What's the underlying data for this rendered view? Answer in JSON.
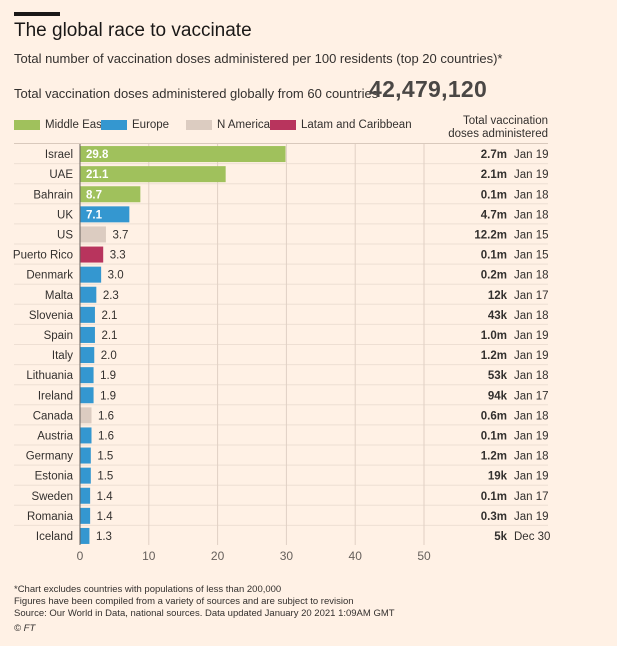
{
  "header": {
    "title": "The global race to vaccinate",
    "subtitle": "Total number of vaccination doses administered per 100 residents (top 20 countries)*",
    "total_label": "Total vaccination doses administered globally from 60 countries",
    "total_value": "42,479,120",
    "doses_column_header": "Total vaccination doses administered"
  },
  "legend": [
    {
      "name": "Middle East",
      "color": "#a0c15c"
    },
    {
      "name": "Europe",
      "color": "#3497d0"
    },
    {
      "name": "N America",
      "color": "#dcccc1"
    },
    {
      "name": "Latam and Caribbean",
      "color": "#b8345d"
    }
  ],
  "chart_data": {
    "type": "bar",
    "orientation": "horizontal",
    "xlim": [
      0,
      50
    ],
    "x_ticks": [
      0,
      10,
      20,
      30,
      40,
      50
    ],
    "grid": true,
    "legend_position": "top",
    "rows": [
      {
        "country": "Israel",
        "value": 29.8,
        "label": "29.8",
        "region": "Middle East",
        "doses": "2.7m",
        "date": "Jan 19"
      },
      {
        "country": "UAE",
        "value": 21.1,
        "label": "21.1",
        "region": "Middle East",
        "doses": "2.1m",
        "date": "Jan 19"
      },
      {
        "country": "Bahrain",
        "value": 8.7,
        "label": "8.7",
        "region": "Middle East",
        "doses": "0.1m",
        "date": "Jan 18"
      },
      {
        "country": "UK",
        "value": 7.1,
        "label": "7.1",
        "region": "Europe",
        "doses": "4.7m",
        "date": "Jan 18"
      },
      {
        "country": "US",
        "value": 3.7,
        "label": "3.7",
        "region": "N America",
        "doses": "12.2m",
        "date": "Jan 15"
      },
      {
        "country": "Puerto Rico",
        "value": 3.3,
        "label": "3.3",
        "region": "Latam and Caribbean",
        "doses": "0.1m",
        "date": "Jan 15"
      },
      {
        "country": "Denmark",
        "value": 3.0,
        "label": "3.0",
        "region": "Europe",
        "doses": "0.2m",
        "date": "Jan 18"
      },
      {
        "country": "Malta",
        "value": 2.3,
        "label": "2.3",
        "region": "Europe",
        "doses": "12k",
        "date": "Jan 17"
      },
      {
        "country": "Slovenia",
        "value": 2.1,
        "label": "2.1",
        "region": "Europe",
        "doses": "43k",
        "date": "Jan 18"
      },
      {
        "country": "Spain",
        "value": 2.1,
        "label": "2.1",
        "region": "Europe",
        "doses": "1.0m",
        "date": "Jan 19"
      },
      {
        "country": "Italy",
        "value": 2.0,
        "label": "2.0",
        "region": "Europe",
        "doses": "1.2m",
        "date": "Jan 19"
      },
      {
        "country": "Lithuania",
        "value": 1.9,
        "label": "1.9",
        "region": "Europe",
        "doses": "53k",
        "date": "Jan 18"
      },
      {
        "country": "Ireland",
        "value": 1.9,
        "label": "1.9",
        "region": "Europe",
        "doses": "94k",
        "date": "Jan 17"
      },
      {
        "country": "Canada",
        "value": 1.6,
        "label": "1.6",
        "region": "N America",
        "doses": "0.6m",
        "date": "Jan 18"
      },
      {
        "country": "Austria",
        "value": 1.6,
        "label": "1.6",
        "region": "Europe",
        "doses": "0.1m",
        "date": "Jan 19"
      },
      {
        "country": "Germany",
        "value": 1.5,
        "label": "1.5",
        "region": "Europe",
        "doses": "1.2m",
        "date": "Jan 18"
      },
      {
        "country": "Estonia",
        "value": 1.5,
        "label": "1.5",
        "region": "Europe",
        "doses": "19k",
        "date": "Jan 19"
      },
      {
        "country": "Sweden",
        "value": 1.4,
        "label": "1.4",
        "region": "Europe",
        "doses": "0.1m",
        "date": "Jan 17"
      },
      {
        "country": "Romania",
        "value": 1.4,
        "label": "1.4",
        "region": "Europe",
        "doses": "0.3m",
        "date": "Jan 19"
      },
      {
        "country": "Iceland",
        "value": 1.3,
        "label": "1.3",
        "region": "Europe",
        "doses": "5k",
        "date": "Dec 30"
      }
    ]
  },
  "footnotes": [
    "*Chart excludes countries with populations of less than 200,000",
    "Figures have been compiled from a variety of sources and are subject to revision",
    "Source: Our World in Data, national sources. Data updated January 20 2021 1:09AM GMT"
  ],
  "copyright": "© FT"
}
